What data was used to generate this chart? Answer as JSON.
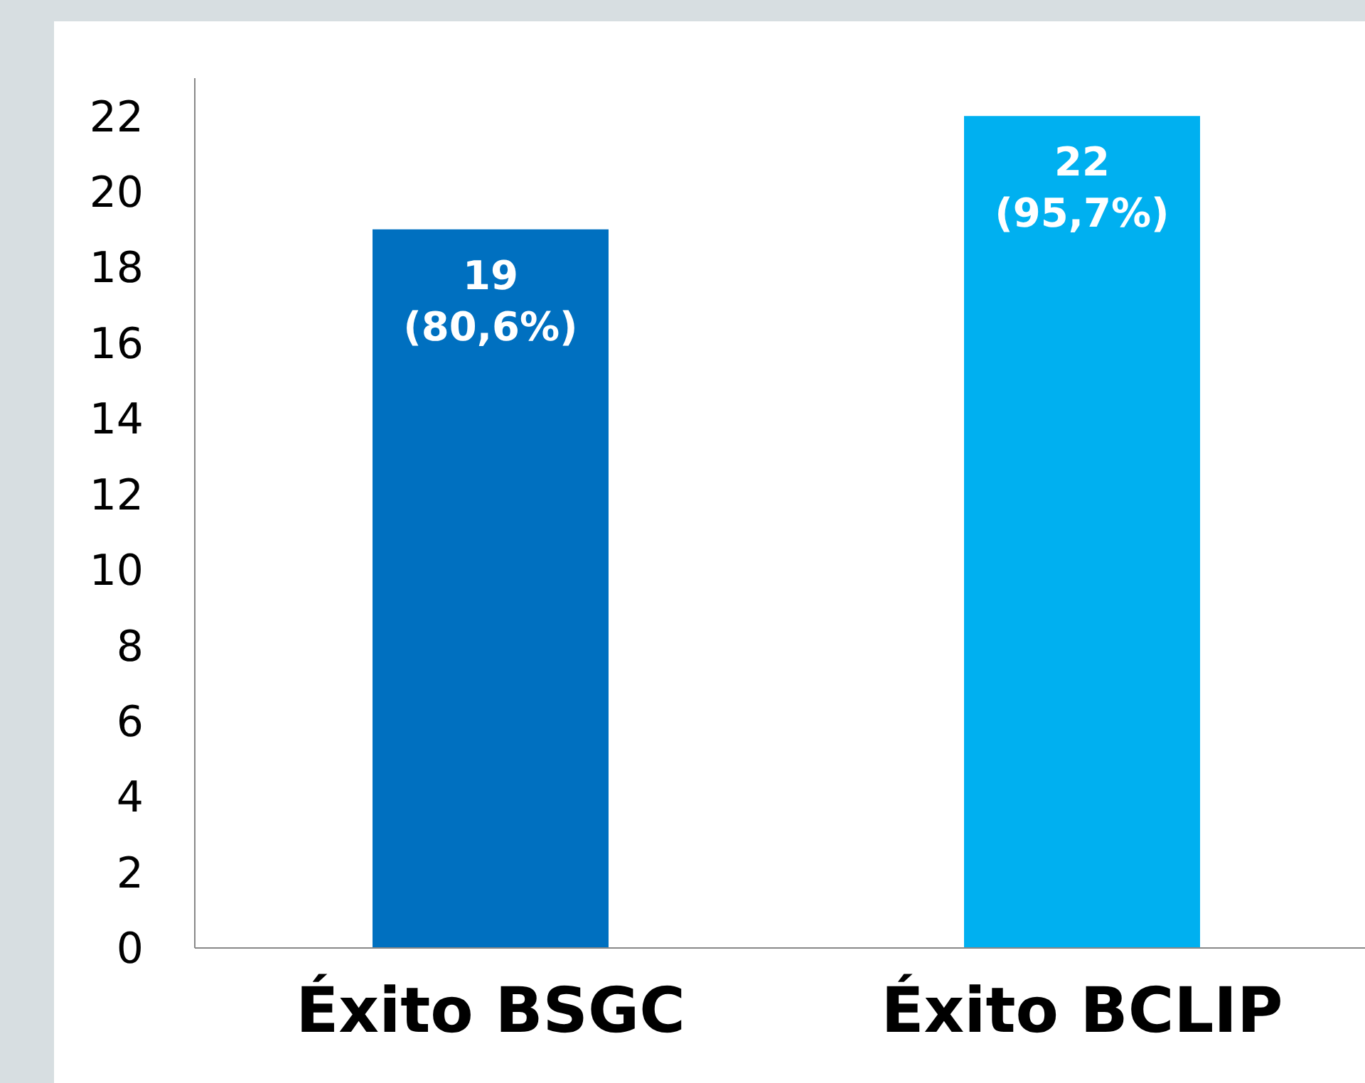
{
  "chart_data": {
    "type": "bar",
    "categories": [
      "Éxito BSGC",
      "Éxito BCLIP"
    ],
    "values": [
      19,
      22
    ],
    "colors": [
      "#0070c0",
      "#00b0f0"
    ],
    "value_labels": [
      "19 (80,6%)",
      "22 (95,7%)"
    ],
    "ylim": [
      0,
      23
    ],
    "yticks": [
      0,
      2,
      4,
      6,
      8,
      10,
      12,
      14,
      16,
      18,
      20,
      22
    ],
    "grid": false,
    "legend": false
  }
}
